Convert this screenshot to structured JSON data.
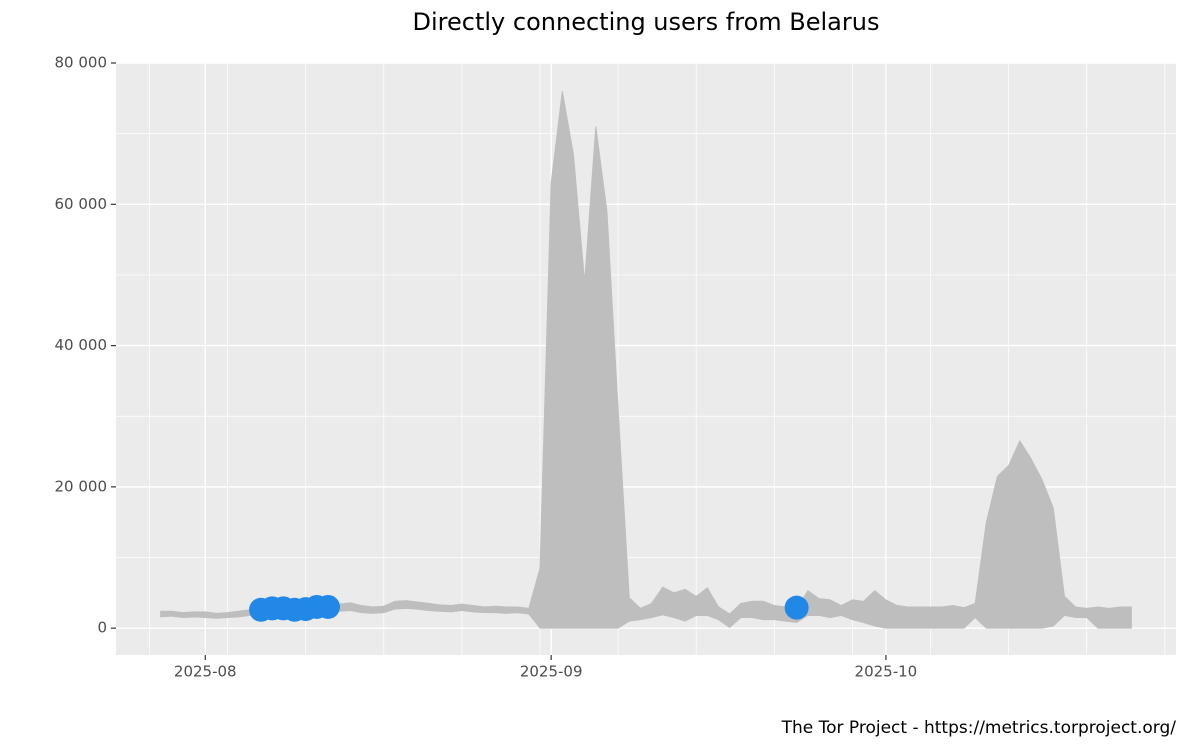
{
  "chart_data": {
    "type": "line",
    "title": "Directly connecting users from Belarus",
    "caption": "The Tor Project - https://metrics.torproject.org/",
    "x": [
      "2025-07-28",
      "2025-07-29",
      "2025-07-30",
      "2025-07-31",
      "2025-08-01",
      "2025-08-02",
      "2025-08-03",
      "2025-08-04",
      "2025-08-05",
      "2025-08-06",
      "2025-08-07",
      "2025-08-08",
      "2025-08-09",
      "2025-08-10",
      "2025-08-11",
      "2025-08-12",
      "2025-08-13",
      "2025-08-14",
      "2025-08-15",
      "2025-08-16",
      "2025-08-17",
      "2025-08-18",
      "2025-08-19",
      "2025-08-20",
      "2025-08-21",
      "2025-08-22",
      "2025-08-23",
      "2025-08-24",
      "2025-08-25",
      "2025-08-26",
      "2025-08-27",
      "2025-08-28",
      "2025-08-29",
      "2025-08-30",
      "2025-08-31",
      "2025-09-01",
      "2025-09-02",
      "2025-09-03",
      "2025-09-04",
      "2025-09-05",
      "2025-09-06",
      "2025-09-07",
      "2025-09-08",
      "2025-09-09",
      "2025-09-10",
      "2025-09-11",
      "2025-09-12",
      "2025-09-13",
      "2025-09-14",
      "2025-09-15",
      "2025-09-16",
      "2025-09-17",
      "2025-09-18",
      "2025-09-19",
      "2025-09-20",
      "2025-09-21",
      "2025-09-22",
      "2025-09-23",
      "2025-09-24",
      "2025-09-25",
      "2025-09-26",
      "2025-09-27",
      "2025-09-28",
      "2025-09-29",
      "2025-09-30",
      "2025-10-01",
      "2025-10-02",
      "2025-10-03",
      "2025-10-04",
      "2025-10-05",
      "2025-10-06",
      "2025-10-07",
      "2025-10-08",
      "2025-10-09",
      "2025-10-10",
      "2025-10-11",
      "2025-10-12",
      "2025-10-13",
      "2025-10-14",
      "2025-10-15",
      "2025-10-16",
      "2025-10-17",
      "2025-10-18",
      "2025-10-19",
      "2025-10-20",
      "2025-10-21",
      "2025-10-22",
      "2025-10-23"
    ],
    "users": [
      2000,
      2000,
      1800,
      1900,
      1900,
      1800,
      1900,
      2000,
      2200,
      2600,
      2800,
      2800,
      2600,
      2700,
      3000,
      3000,
      2900,
      3000,
      2700,
      2500,
      2600,
      3200,
      3300,
      3100,
      3000,
      2900,
      2800,
      2900,
      2700,
      2600,
      2600,
      2500,
      2600,
      2400,
      2500,
      2600,
      2700,
      2600,
      2500,
      2600,
      2500,
      2400,
      2500,
      2000,
      2400,
      3500,
      3000,
      3000,
      3000,
      3300,
      2000,
      1000,
      2500,
      2600,
      2500,
      2200,
      2000,
      2900,
      3300,
      3000,
      2800,
      2500,
      2600,
      2400,
      2800,
      2500,
      2400,
      2500,
      2500,
      2500,
      2600,
      2600,
      2500,
      2700,
      2800,
      2800,
      2900,
      2900,
      2800,
      2800,
      2700,
      2900,
      2500,
      2500,
      2600,
      2500,
      2700,
      2700
    ],
    "range_low": [
      1600,
      1700,
      1500,
      1600,
      1500,
      1400,
      1500,
      1600,
      1800,
      2000,
      2100,
      2100,
      2000,
      2100,
      2200,
      2300,
      2400,
      2500,
      2200,
      2100,
      2200,
      2700,
      2800,
      2700,
      2500,
      2400,
      2300,
      2500,
      2300,
      2200,
      2200,
      2100,
      2200,
      2000,
      0,
      0,
      0,
      0,
      0,
      0,
      0,
      0,
      1000,
      1200,
      1500,
      1900,
      1500,
      1000,
      1800,
      1800,
      1200,
      100,
      1500,
      1500,
      1200,
      1200,
      1000,
      800,
      1800,
      1800,
      1500,
      1800,
      1200,
      800,
      300,
      0,
      0,
      0,
      0,
      0,
      0,
      0,
      0,
      1500,
      0,
      0,
      0,
      0,
      0,
      0,
      300,
      1800,
      1500,
      1500,
      0,
      0,
      0,
      0
    ],
    "range_high": [
      2400,
      2400,
      2200,
      2300,
      2300,
      2100,
      2200,
      2400,
      2600,
      2300,
      2400,
      2400,
      2300,
      2400,
      2600,
      2700,
      3400,
      3600,
      3200,
      3000,
      3100,
      3800,
      3900,
      3700,
      3500,
      3300,
      3200,
      3400,
      3200,
      3000,
      3100,
      3000,
      3000,
      2800,
      8500,
      63000,
      76000,
      67000,
      49000,
      71000,
      59000,
      31000,
      4300,
      2800,
      3500,
      5800,
      5000,
      5500,
      4500,
      5700,
      3000,
      2000,
      3500,
      3800,
      3800,
      3200,
      3000,
      2600,
      5300,
      4200,
      4000,
      3200,
      4000,
      3800,
      5300,
      4000,
      3200,
      3000,
      3000,
      3000,
      3000,
      3200,
      2900,
      3500,
      15000,
      21500,
      23000,
      26500,
      24000,
      21000,
      17000,
      4500,
      3000,
      2800,
      3000,
      2800,
      3000,
      3000
    ],
    "events": [
      null,
      null,
      null,
      null,
      null,
      null,
      null,
      null,
      null,
      2600,
      2800,
      2800,
      2600,
      2700,
      3000,
      3000,
      null,
      null,
      null,
      null,
      null,
      null,
      null,
      null,
      null,
      null,
      null,
      null,
      null,
      null,
      null,
      null,
      null,
      null,
      null,
      null,
      null,
      null,
      null,
      null,
      null,
      null,
      null,
      null,
      null,
      null,
      null,
      null,
      null,
      null,
      null,
      null,
      null,
      null,
      null,
      null,
      null,
      2900,
      null,
      null,
      null,
      null,
      null,
      null,
      null,
      null,
      null,
      null,
      null,
      null,
      null,
      null,
      null,
      null,
      null,
      null,
      null,
      null,
      null,
      null,
      null,
      null,
      null,
      null,
      null,
      null,
      null,
      null
    ],
    "line_color": "#333333",
    "range_color": "#bebebe",
    "event_color": "#2188e8",
    "xlim": [
      "2025-07-24",
      "2025-10-27"
    ],
    "xticks": [
      {
        "value": "2025-08-01",
        "label": "2025-08"
      },
      {
        "value": "2025-09-01",
        "label": "2025-09"
      },
      {
        "value": "2025-10-01",
        "label": "2025-10"
      }
    ],
    "xminor": [
      "2025-07-27",
      "2025-08-03",
      "2025-08-10",
      "2025-08-17",
      "2025-08-24",
      "2025-08-31",
      "2025-09-07",
      "2025-09-14",
      "2025-09-21",
      "2025-09-28",
      "2025-10-05",
      "2025-10-12",
      "2025-10-19",
      "2025-10-26"
    ],
    "ylim": [
      -3800,
      80000
    ],
    "yticks": [
      0,
      {
        "value": 20000,
        "label": "20 000"
      },
      {
        "value": 40000,
        "label": "40 000"
      },
      {
        "value": 60000,
        "label": "60 000"
      },
      {
        "value": 80000,
        "label": "80 000"
      }
    ],
    "yminor": [
      10000,
      30000,
      50000,
      70000
    ],
    "grid": true
  }
}
